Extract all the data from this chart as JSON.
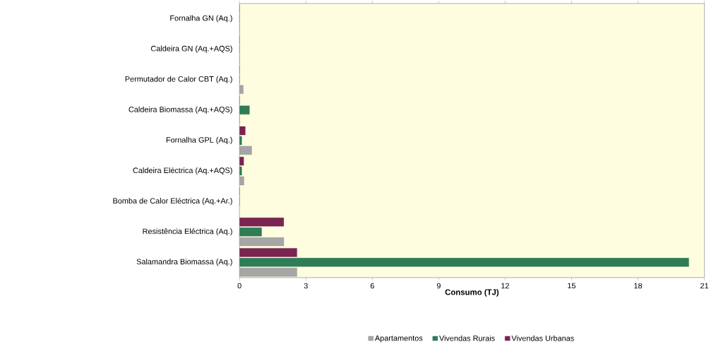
{
  "chart_data": {
    "type": "bar",
    "orientation": "horizontal",
    "xlabel": "Consumo (TJ)",
    "legend": "bottom",
    "categories": [
      "Fornalha GN (Aq.)",
      "Caldeira GN (Aq.+AQS)",
      "Permutador de Calor CBT (Aq.)",
      "Caldeira Biomassa (Aq.+AQS)",
      "Fornalha GPL (Aq.)",
      "Caldeira Eléctrica (Aq.+AQS)",
      "Bomba de Calor Eléctrica (Aq.+Ar.)",
      "Resistência Eléctrica (Aq.)",
      "Salamandra Biomassa (Aq.)"
    ],
    "series": [
      {
        "name": "Apartamentos",
        "color": "#a6a6a6",
        "values": [
          0,
          0,
          0.17,
          0,
          0.55,
          0.2,
          null,
          2.0,
          2.6
        ]
      },
      {
        "name": "Vivendas Rurais",
        "color": "#2e7d57",
        "values": [
          0,
          0,
          0,
          0.45,
          0.1,
          0.1,
          0,
          1.0,
          20.3
        ]
      },
      {
        "name": "Vivendas Urbanas",
        "color": "#7b2451",
        "values": [
          0,
          0,
          0,
          0,
          0.26,
          0.19,
          0,
          2.0,
          2.6
        ]
      }
    ],
    "xlim": [
      0,
      21
    ],
    "xticks": [
      0,
      3,
      6,
      9,
      12,
      15,
      18,
      21
    ]
  }
}
